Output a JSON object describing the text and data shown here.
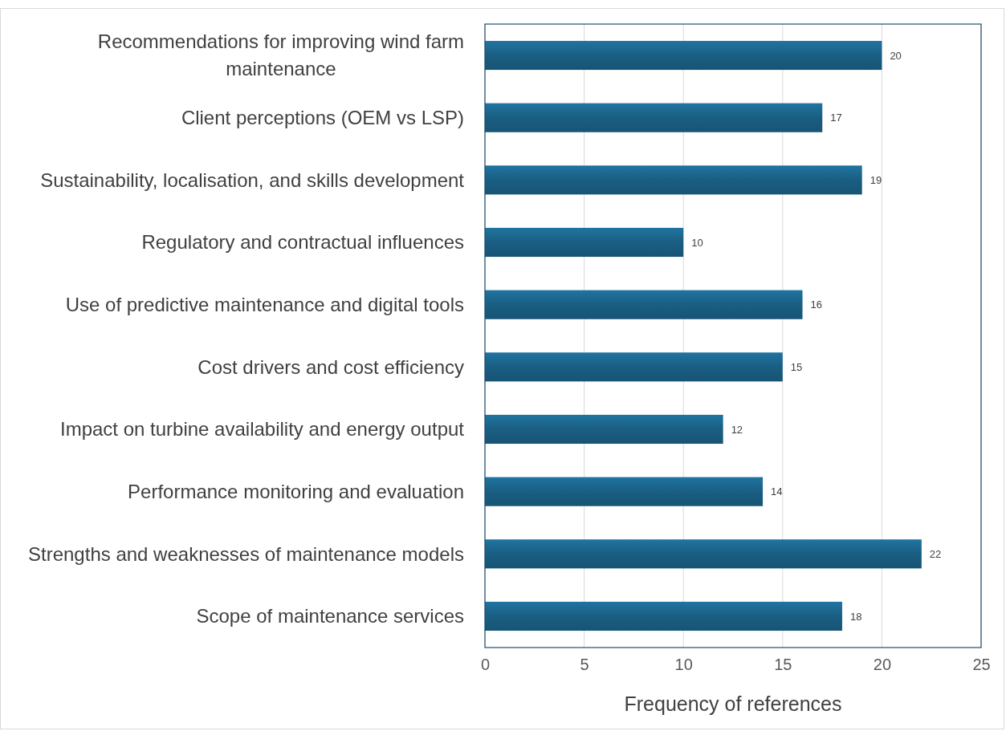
{
  "chart_data": {
    "type": "bar",
    "orientation": "horizontal",
    "xlabel": "Frequency of references",
    "categories": [
      "Recommendations for improving wind farm maintenance",
      "Client perceptions (OEM vs LSP)",
      "Sustainability, localisation, and skills development",
      "Regulatory and contractual influences",
      "Use of predictive maintenance and digital tools",
      "Cost drivers and cost efficiency",
      "Impact on turbine availability and energy output",
      "Performance monitoring and evaluation",
      "Strengths and weaknesses of maintenance models",
      "Scope of maintenance services"
    ],
    "values": [
      20,
      17,
      19,
      10,
      16,
      15,
      12,
      14,
      22,
      18
    ],
    "color": "#1a5e82",
    "xlim": [
      0,
      25
    ],
    "xticks": [
      0,
      5,
      10,
      15,
      20,
      25
    ],
    "grid": "x",
    "data_labels": true
  }
}
